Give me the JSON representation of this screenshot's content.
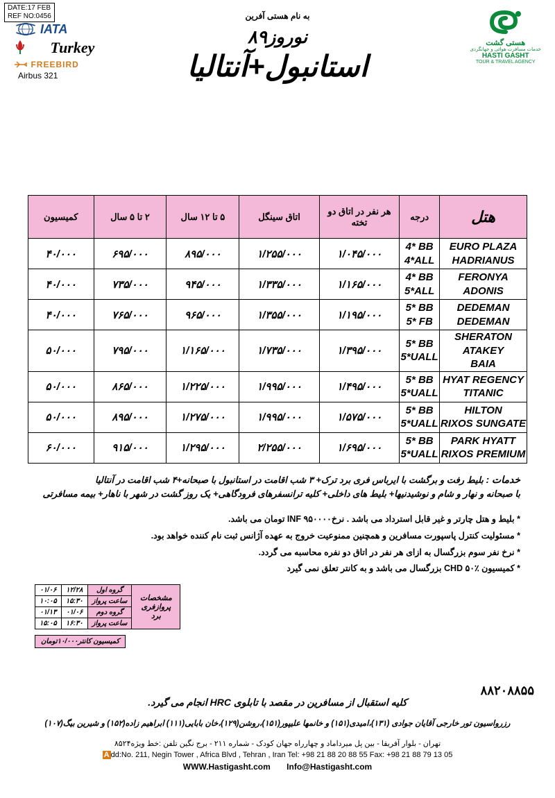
{
  "ref": {
    "date": "DATE:17 FEB",
    "no": "REF NO:0456"
  },
  "logos": {
    "iata": "IATA",
    "turkey": "Turkey",
    "freebird": "FREEBIRD",
    "airbus": "Airbus 321",
    "hg_fa": "هستی گشت",
    "hg_sub_fa": "خدمات مسافرت هوائی و جهانگردی",
    "hg_en": "HASTI GASHT",
    "hg_sub_en": "TOUR & TRAVEL AGENCY"
  },
  "head": {
    "bismillah": "به نام هستی آفرین",
    "nowruz": "نوروز۸۹",
    "destination": "استانبول+آنتالیا"
  },
  "table": {
    "headers": [
      "هتل",
      "درجه",
      "هر نفر در اتاق دو تخته",
      "اتاق سینگل",
      "۵ تا ۱۲ سال",
      "۲ تا ۵ سال",
      "کمیسیون"
    ],
    "rows": [
      {
        "hotel": "EURO PLAZA\nHADRIANUS",
        "grade": "4* BB\n4*ALL",
        "dbl": "۱/۰۴۵/۰۰۰",
        "sgl": "۱/۲۵۵/۰۰۰",
        "c512": "۸۹۵/۰۰۰",
        "c25": "۶۹۵/۰۰۰",
        "com": "۴۰/۰۰۰"
      },
      {
        "hotel": "FERONYA\nADONIS",
        "grade": "4* BB\n5*ALL",
        "dbl": "۱/۱۶۵/۰۰۰",
        "sgl": "۱/۳۳۵/۰۰۰",
        "c512": "۹۴۵/۰۰۰",
        "c25": "۷۳۵/۰۰۰",
        "com": "۴۰/۰۰۰"
      },
      {
        "hotel": "DEDEMAN\nDEDEMAN",
        "grade": "5* BB\n5* FB",
        "dbl": "۱/۱۹۵/۰۰۰",
        "sgl": "۱/۳۵۵/۰۰۰",
        "c512": "۹۶۵/۰۰۰",
        "c25": "۷۶۵/۰۰۰",
        "com": "۴۰/۰۰۰"
      },
      {
        "hotel": "SHERATON ATAKEY\nBAIA",
        "grade": "5* BB\n5*UALL",
        "dbl": "۱/۳۹۵/۰۰۰",
        "sgl": "۱/۷۳۵/۰۰۰",
        "c512": "۱/۱۶۵/۰۰۰",
        "c25": "۷۹۵/۰۰۰",
        "com": "۵۰/۰۰۰"
      },
      {
        "hotel": "HYAT REGENCY\nTITANIC",
        "grade": "5* BB\n5*UALL",
        "dbl": "۱/۴۹۵/۰۰۰",
        "sgl": "۱/۹۹۵/۰۰۰",
        "c512": "۱/۲۲۵/۰۰۰",
        "c25": "۸۶۵/۰۰۰",
        "com": "۵۰/۰۰۰"
      },
      {
        "hotel": "HILTON\nRIXOS SUNGATE",
        "grade": "5* BB\n5*UALL",
        "dbl": "۱/۵۷۵/۰۰۰",
        "sgl": "۱/۹۹۵/۰۰۰",
        "c512": "۱/۲۷۵/۰۰۰",
        "c25": "۸۹۵/۰۰۰",
        "com": "۵۰/۰۰۰"
      },
      {
        "hotel": "PARK HYATT\nRIXOS PREMIUM",
        "grade": "5* BB\n5*UALL",
        "dbl": "۱/۶۹۵/۰۰۰",
        "sgl": "۲/۲۵۵/۰۰۰",
        "c512": "۱/۲۹۵/۰۰۰",
        "c25": "۹۱۵/۰۰۰",
        "com": "۶۰/۰۰۰"
      }
    ]
  },
  "services": {
    "label": "خدمات :",
    "line1": "بلیط رفت و برگشت با ایرباس فری برد ترک+ ۳ شب اقامت در استانبول با صبحانه+۴ شب اقامت در آنتالیا",
    "line2": "با صبحانه و نهار و شام و نوشیدنیها+ بلیط های داخلی+ کلیه ترانسفرهای فرودگاهی+ یک روز گشت در شهر با ناهار+ بیمه مسافرتی"
  },
  "bullets": [
    "بلیط و هتل چارتر و غیر قابل استرداد می باشد . نرخINF ۹۵۰۰۰۰ تومان می باشد.",
    "مسئولیت کنترل پاسپورت مسافرین و همچنین ممنوعیت خروج به عهده آژانس ثبت نام کننده خواهد بود.",
    "نرخ نفر سوم بزرگسال به ازای هر نفر در اتاق دو نفره محاسبه می گردد.",
    "کمیسیون CHD ۵۰٪ بزرگسال می باشد و به کانتر تعلق نمی گیرد"
  ],
  "flight": {
    "side": "مشخصات پروازفری برد",
    "g1": "گروه اول",
    "g1d1": "۱۲/۲۸",
    "g1d2": "۰۱/۰۶",
    "ft1": "ساعت پرواز",
    "ft1t1": "۱۵:۳۰",
    "ft1t2": "۱۰:۰۵",
    "g2": "گروه دوم",
    "g2d1": "۰۱/۰۶",
    "g2d2": "۰۱/۱۳",
    "ft2": "ساعت پرواز",
    "ft2t1": "۱۶:۳۰",
    "ft2t2": "۱۵:۰۵"
  },
  "counter_com": "کمیسیون کانتر۱۰/۰۰۰تومان",
  "reception": "کلیه استقبال از مسافرین در مقصد با تابلوی HRC انجام می گیرد.",
  "reservation": "رزرواسیون تور خارجی آقایان جوادی (۱۳۱)،امیدی(۱۵۱) و خانمها علیپور(۱۵۱)،روشن(۱۲۹)،خان بابایی(۱۱۱) ابراهیم زاده(۱۵۲) و شیرین بیگ(۱۰۷)",
  "addr_fa": "تهران - بلوار آفریقا - بین پل میرداماد و چهارراه جهان کودک - شماره ۲۱۱ - برج نگین   تلفن :خط ویژه۸۵۲۴",
  "phone_big": "۸۸۲۰۸۸۵۵",
  "addr_en": "dd:No. 211, Negin Tower , Africa Blvd , Tehran , Iran     Tel: +98 21 88 20 88 55     Fax: +98 21 88 79 13 05",
  "website": "WWW.Hastigasht.com",
  "email": "Info@Hastigasht.com",
  "colors": {
    "header_bg": "#f4b8d8",
    "green": "#0a8a3a",
    "orange": "#d87a1a",
    "blue": "#1a4a8a"
  }
}
